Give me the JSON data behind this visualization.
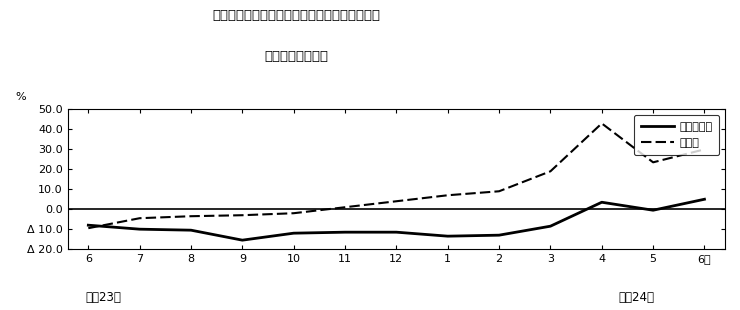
{
  "title_line1": "第２図　所定外労働時間　対前年同月比の推移",
  "title_line2": "（規模５人以上）",
  "x_labels": [
    "6",
    "7",
    "8",
    "9",
    "10",
    "11",
    "12",
    "1",
    "2",
    "3",
    "4",
    "5",
    "6月"
  ],
  "x_label_below_left": "平成23年",
  "x_label_below_right": "平成24年",
  "y_percent_label": "%",
  "ylim": [
    -20.0,
    50.0
  ],
  "yticks": [
    -20.0,
    -10.0,
    0.0,
    10.0,
    20.0,
    30.0,
    40.0,
    50.0
  ],
  "ytick_labels": [
    "Δ 20.0",
    "Δ 10.0",
    "0.0",
    "10.0",
    "20.0",
    "30.0",
    "40.0",
    "50.0"
  ],
  "series_solid": [
    -8.0,
    -10.0,
    -10.5,
    -15.5,
    -12.0,
    -11.5,
    -11.5,
    -13.5,
    -13.0,
    -8.5,
    3.5,
    -0.5,
    5.0
  ],
  "series_dashed": [
    -9.5,
    -4.5,
    -3.5,
    -3.0,
    -2.0,
    1.0,
    4.0,
    7.0,
    9.0,
    19.0,
    43.0,
    23.5,
    30.0
  ],
  "legend_solid_label": "調査産業計",
  "legend_dashed_label": "製造業",
  "background_color": "#ffffff",
  "line_color": "#000000"
}
